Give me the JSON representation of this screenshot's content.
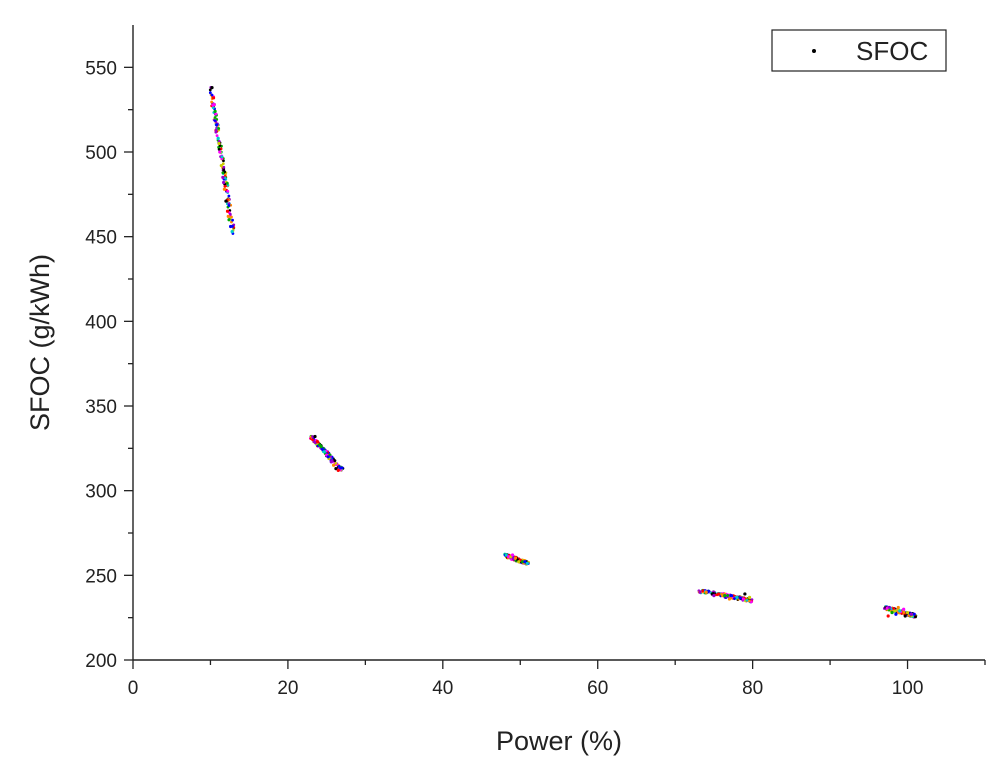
{
  "chart_data": {
    "type": "scatter",
    "title": "",
    "xlabel": "Power (%)",
    "ylabel": "SFOC (g/kWh)",
    "xlim": [
      0,
      110
    ],
    "ylim": [
      200,
      575
    ],
    "xticks": [
      0,
      20,
      40,
      60,
      80,
      100
    ],
    "yticks": [
      200,
      250,
      300,
      350,
      400,
      450,
      500,
      550
    ],
    "grid": false,
    "legend_position": "top-right",
    "series": [
      {
        "name": "SFOC",
        "color": "#000000",
        "marker": "dot",
        "point_colors": [
          "#000000",
          "#ff0000",
          "#00aa00",
          "#0000ff",
          "#00cccc",
          "#ff00ff",
          "#cccc00",
          "#9900cc",
          "#ff8800"
        ],
        "x": [
          10.2,
          10.4,
          10.6,
          10.8,
          11.0,
          11.2,
          11.4,
          11.6,
          11.8,
          12.0,
          12.2,
          12.4,
          12.6,
          12.8,
          10.5,
          11.1,
          11.7,
          12.3,
          23.5,
          23.8,
          24.1,
          24.4,
          24.7,
          25.0,
          25.3,
          25.6,
          25.9,
          26.2,
          26.5,
          24.3,
          25.2,
          48.2,
          48.5,
          48.8,
          49.1,
          49.4,
          49.7,
          50.0,
          50.3,
          50.6,
          50.9,
          49.0,
          49.8,
          73.2,
          74.0,
          74.8,
          75.6,
          76.4,
          77.2,
          78.0,
          78.8,
          79.6,
          75.0,
          77.0,
          79.0,
          97.5,
          98.0,
          98.5,
          99.0,
          99.5,
          100.0,
          100.5,
          98.8,
          99.7
        ],
        "y": [
          538,
          532,
          524,
          516,
          508,
          500,
          492,
          485,
          478,
          471,
          465,
          460,
          456,
          453,
          528,
          505,
          482,
          462,
          332,
          329,
          327,
          325,
          323,
          321,
          319,
          317,
          315,
          313,
          312,
          326,
          320,
          262,
          261,
          261,
          260,
          260,
          259,
          259,
          258,
          258,
          257,
          262,
          258,
          240,
          240,
          239,
          239,
          238,
          238,
          237,
          236,
          237,
          238,
          236,
          239,
          226,
          228,
          227,
          229,
          230,
          228,
          227,
          231,
          226
        ],
        "ranges": [
          {
            "x": [
              10,
              13
            ],
            "y": [
              453,
              538
            ]
          },
          {
            "x": [
              23,
              27
            ],
            "y": [
              312,
              332
            ]
          },
          {
            "x": [
              48,
              51
            ],
            "y": [
              257,
              262
            ]
          },
          {
            "x": [
              73,
              80
            ],
            "y": [
              235,
              241
            ]
          },
          {
            "x": [
              97,
              101
            ],
            "y": [
              226,
              231
            ]
          }
        ]
      }
    ]
  }
}
